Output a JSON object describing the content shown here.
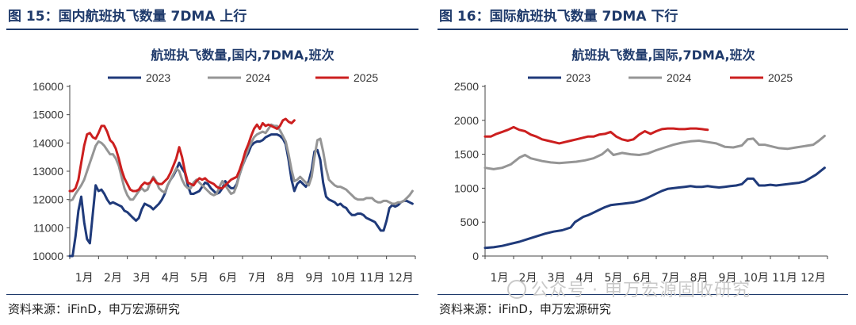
{
  "left": {
    "fig_title": "图 15：国内航班执飞数量 7DMA 上行",
    "source": "资料来源：iFinD，申万宏源研究"
  },
  "right": {
    "fig_title": "图 16：国际航班执飞数量 7DMA 下行",
    "source": "资料来源：iFinD，申万宏源研究"
  },
  "watermark": "公众号 · 申万宏源固收研究",
  "chart_data": [
    {
      "type": "line",
      "title": "航班执飞数量,国内,7DMA,班次",
      "categories": [
        "1月",
        "2月",
        "3月",
        "4月",
        "5月",
        "6月",
        "7月",
        "8月",
        "9月",
        "10月",
        "11月",
        "12月"
      ],
      "ylim": [
        10000,
        16000
      ],
      "yticks": [
        10000,
        11000,
        12000,
        13000,
        14000,
        15000,
        16000
      ],
      "grid": false,
      "legend_position": "top",
      "colors": {
        "2023": "#1f3a7a",
        "2024": "#959595",
        "2025": "#cc1f1f"
      },
      "series": [
        {
          "name": "2023",
          "x": [
            1.0,
            1.1,
            1.2,
            1.3,
            1.4,
            1.5,
            1.6,
            1.7,
            1.8,
            1.9,
            2.0,
            2.1,
            2.2,
            2.3,
            2.4,
            2.5,
            2.6,
            2.7,
            2.8,
            2.9,
            3.0,
            3.1,
            3.2,
            3.3,
            3.4,
            3.5,
            3.6,
            3.7,
            3.8,
            3.9,
            4.0,
            4.1,
            4.2,
            4.3,
            4.4,
            4.5,
            4.6,
            4.7,
            4.8,
            4.9,
            5.0,
            5.1,
            5.2,
            5.3,
            5.4,
            5.5,
            5.6,
            5.7,
            5.8,
            5.9,
            6.0,
            6.1,
            6.2,
            6.3,
            6.4,
            6.5,
            6.6,
            6.7,
            6.8,
            6.9,
            7.0,
            7.1,
            7.2,
            7.3,
            7.4,
            7.5,
            7.6,
            7.7,
            7.8,
            7.9,
            8.0,
            8.1,
            8.2,
            8.3,
            8.4,
            8.5,
            8.6,
            8.7,
            8.8,
            8.9,
            9.0,
            9.1,
            9.2,
            9.3,
            9.4,
            9.5,
            9.6,
            9.7,
            9.8,
            9.9,
            10.0,
            10.1,
            10.2,
            10.3,
            10.4,
            10.5,
            10.6,
            10.7,
            10.8,
            10.9,
            11.0,
            11.1,
            11.2,
            11.3,
            11.4,
            11.5,
            11.6,
            11.7,
            11.8,
            11.9,
            12.0,
            12.1,
            12.2,
            12.3,
            12.4,
            12.5,
            12.6,
            12.7,
            12.8,
            12.9
          ],
          "values": [
            9700,
            9950,
            10700,
            11600,
            12100,
            11200,
            10600,
            10450,
            11500,
            12500,
            12300,
            12350,
            12200,
            12000,
            11850,
            11900,
            11850,
            11800,
            11750,
            11600,
            11550,
            11450,
            11350,
            11250,
            11350,
            11650,
            11850,
            11800,
            11750,
            11650,
            11750,
            11850,
            12000,
            12200,
            12500,
            12700,
            12850,
            13050,
            13300,
            13100,
            12950,
            12500,
            12200,
            12200,
            12250,
            12300,
            12450,
            12600,
            12550,
            12400,
            12300,
            12200,
            12250,
            12400,
            12650,
            12500,
            12400,
            12400,
            12550,
            12900,
            13200,
            13450,
            13650,
            13900,
            14000,
            14050,
            14050,
            14100,
            14200,
            14250,
            14300,
            14300,
            14300,
            14250,
            14150,
            13950,
            13400,
            12700,
            12300,
            12550,
            12650,
            12550,
            12450,
            12650,
            13050,
            13700,
            13750,
            13400,
            12600,
            12100,
            12000,
            11950,
            11900,
            11800,
            11850,
            11750,
            11700,
            11550,
            11450,
            11450,
            11500,
            11500,
            11450,
            11350,
            11300,
            11250,
            11200,
            11050,
            10900,
            10900,
            11250,
            11700,
            11800,
            11750,
            11800,
            11900,
            11950,
            11950,
            11900,
            11850
          ]
        },
        {
          "name": "2024",
          "x": [
            1.0,
            1.1,
            1.2,
            1.3,
            1.4,
            1.5,
            1.6,
            1.7,
            1.8,
            1.9,
            2.0,
            2.1,
            2.2,
            2.3,
            2.4,
            2.5,
            2.6,
            2.7,
            2.8,
            2.9,
            3.0,
            3.1,
            3.2,
            3.3,
            3.4,
            3.5,
            3.6,
            3.7,
            3.8,
            3.9,
            4.0,
            4.1,
            4.2,
            4.3,
            4.4,
            4.5,
            4.6,
            4.7,
            4.8,
            4.9,
            5.0,
            5.1,
            5.2,
            5.3,
            5.4,
            5.5,
            5.6,
            5.7,
            5.8,
            5.9,
            6.0,
            6.1,
            6.2,
            6.3,
            6.4,
            6.5,
            6.6,
            6.7,
            6.8,
            6.9,
            7.0,
            7.1,
            7.2,
            7.3,
            7.4,
            7.5,
            7.6,
            7.7,
            7.8,
            7.9,
            8.0,
            8.1,
            8.2,
            8.3,
            8.4,
            8.5,
            8.6,
            8.7,
            8.8,
            8.9,
            9.0,
            9.1,
            9.2,
            9.3,
            9.4,
            9.5,
            9.6,
            9.7,
            9.8,
            9.9,
            10.0,
            10.1,
            10.2,
            10.3,
            10.4,
            10.5,
            10.6,
            10.7,
            10.8,
            10.9,
            11.0,
            11.1,
            11.2,
            11.3,
            11.4,
            11.5,
            11.6,
            11.7,
            11.8,
            11.9,
            12.0,
            12.1,
            12.2,
            12.3,
            12.4,
            12.5,
            12.6,
            12.7,
            12.8,
            12.9
          ],
          "values": [
            11950,
            12000,
            12200,
            12350,
            12500,
            12700,
            13000,
            13300,
            13600,
            13900,
            14050,
            14000,
            13900,
            13750,
            13600,
            13600,
            13450,
            13200,
            12800,
            12400,
            12150,
            12000,
            12000,
            12150,
            12300,
            12400,
            12300,
            12350,
            12600,
            12800,
            12650,
            12400,
            12300,
            12250,
            12500,
            12700,
            12900,
            13100,
            13000,
            12700,
            12500,
            12400,
            12400,
            12600,
            12700,
            12600,
            12500,
            12400,
            12300,
            12200,
            12150,
            12200,
            12450,
            12650,
            12500,
            12350,
            12200,
            12250,
            12500,
            12900,
            13200,
            13500,
            13800,
            14000,
            14200,
            14300,
            14350,
            14400,
            14350,
            14500,
            14650,
            14600,
            14600,
            14450,
            14250,
            14050,
            13600,
            13050,
            12650,
            12700,
            12800,
            12700,
            12600,
            12500,
            12800,
            13500,
            14100,
            14150,
            13700,
            13100,
            12700,
            12600,
            12500,
            12450,
            12450,
            12400,
            12350,
            12250,
            12150,
            12050,
            12000,
            12000,
            12000,
            12050,
            12050,
            12050,
            11950,
            11900,
            11900,
            11950,
            11950,
            11900,
            11850,
            11850,
            11900,
            11900,
            11950,
            12050,
            12150,
            12300
          ]
        },
        {
          "name": "2025",
          "x": [
            1.0,
            1.1,
            1.2,
            1.3,
            1.4,
            1.5,
            1.6,
            1.7,
            1.8,
            1.9,
            2.0,
            2.1,
            2.2,
            2.3,
            2.4,
            2.5,
            2.6,
            2.7,
            2.8,
            2.9,
            3.0,
            3.1,
            3.2,
            3.3,
            3.4,
            3.5,
            3.6,
            3.7,
            3.8,
            3.9,
            4.0,
            4.1,
            4.2,
            4.3,
            4.4,
            4.5,
            4.6,
            4.7,
            4.8,
            4.9,
            5.0,
            5.1,
            5.2,
            5.3,
            5.4,
            5.5,
            5.6,
            5.7,
            5.8,
            5.9,
            6.0,
            6.1,
            6.2,
            6.3,
            6.4,
            6.5,
            6.6,
            6.7,
            6.8,
            6.9,
            7.0,
            7.1,
            7.2,
            7.3,
            7.4,
            7.5,
            7.6,
            7.7,
            7.8,
            7.9,
            8.0,
            8.1,
            8.2,
            8.3,
            8.4,
            8.5,
            8.6,
            8.7,
            8.8
          ],
          "values": [
            12300,
            12300,
            12400,
            12700,
            13300,
            13900,
            14300,
            14350,
            14200,
            14150,
            14350,
            14600,
            14600,
            14400,
            14100,
            14000,
            13800,
            13450,
            13050,
            12750,
            12550,
            12350,
            12300,
            12300,
            12350,
            12500,
            12600,
            12550,
            12600,
            12750,
            12600,
            12550,
            12550,
            12650,
            12750,
            12950,
            13200,
            13450,
            13850,
            13500,
            13000,
            12600,
            12550,
            12500,
            12650,
            12750,
            12700,
            12750,
            12650,
            12600,
            12550,
            12450,
            12400,
            12400,
            12500,
            12600,
            12700,
            12750,
            12800,
            13050,
            13350,
            13700,
            13950,
            14250,
            14500,
            14650,
            14500,
            14700,
            14600,
            14650,
            14600,
            14550,
            14500,
            14600,
            14800,
            14850,
            14750,
            14700,
            14800
          ]
        }
      ]
    },
    {
      "type": "line",
      "title": "航班执飞数量,国际,7DMA,班次",
      "categories": [
        "1月",
        "2月",
        "3月",
        "4月",
        "5月",
        "6月",
        "7月",
        "8月",
        "9月",
        "10月",
        "11月",
        "12月"
      ],
      "ylim": [
        0,
        2500
      ],
      "yticks": [
        0,
        500,
        1000,
        1500,
        2000,
        2500
      ],
      "grid": false,
      "legend_position": "top",
      "colors": {
        "2023": "#1f3a7a",
        "2024": "#959595",
        "2025": "#cc1f1f"
      },
      "series": [
        {
          "name": "2023",
          "x": [
            1.0,
            1.3,
            1.6,
            1.9,
            2.2,
            2.5,
            2.8,
            3.1,
            3.4,
            3.7,
            4.0,
            4.15,
            4.3,
            4.45,
            4.6,
            4.75,
            4.9,
            5.05,
            5.2,
            5.4,
            5.6,
            5.8,
            6.0,
            6.2,
            6.4,
            6.6,
            6.8,
            7.0,
            7.2,
            7.4,
            7.6,
            7.8,
            8.0,
            8.2,
            8.4,
            8.6,
            8.8,
            9.0,
            9.2,
            9.4,
            9.6,
            9.8,
            10.0,
            10.2,
            10.4,
            10.6,
            10.8,
            11.0,
            11.2,
            11.4,
            11.6,
            11.8,
            12.0,
            12.2,
            12.4,
            12.6,
            12.9
          ],
          "values": [
            120,
            130,
            150,
            180,
            210,
            250,
            290,
            330,
            360,
            380,
            420,
            500,
            540,
            580,
            600,
            630,
            660,
            690,
            720,
            750,
            760,
            770,
            780,
            790,
            810,
            840,
            880,
            920,
            960,
            990,
            1000,
            1010,
            1020,
            1030,
            1020,
            1020,
            1030,
            1020,
            1010,
            1020,
            1030,
            1040,
            1060,
            1140,
            1140,
            1040,
            1040,
            1050,
            1040,
            1050,
            1060,
            1070,
            1080,
            1100,
            1150,
            1200,
            1300
          ]
        },
        {
          "name": "2024",
          "x": [
            1.0,
            1.3,
            1.6,
            1.9,
            2.2,
            2.4,
            2.6,
            2.8,
            3.0,
            3.3,
            3.6,
            3.9,
            4.2,
            4.5,
            4.8,
            5.1,
            5.3,
            5.5,
            5.8,
            6.1,
            6.4,
            6.7,
            7.0,
            7.3,
            7.6,
            7.9,
            8.2,
            8.5,
            8.8,
            9.1,
            9.4,
            9.7,
            10.0,
            10.2,
            10.4,
            10.6,
            10.8,
            11.0,
            11.3,
            11.6,
            11.9,
            12.2,
            12.5,
            12.7,
            12.9
          ],
          "values": [
            1300,
            1280,
            1300,
            1350,
            1450,
            1490,
            1440,
            1420,
            1400,
            1380,
            1370,
            1380,
            1390,
            1410,
            1440,
            1500,
            1570,
            1490,
            1520,
            1500,
            1490,
            1510,
            1560,
            1600,
            1640,
            1670,
            1690,
            1700,
            1680,
            1660,
            1610,
            1600,
            1630,
            1720,
            1730,
            1640,
            1640,
            1620,
            1590,
            1580,
            1600,
            1620,
            1640,
            1700,
            1770
          ]
        },
        {
          "name": "2025",
          "x": [
            1.0,
            1.2,
            1.4,
            1.6,
            1.8,
            2.0,
            2.2,
            2.4,
            2.6,
            2.8,
            3.0,
            3.2,
            3.4,
            3.6,
            3.8,
            4.0,
            4.2,
            4.4,
            4.6,
            4.8,
            5.0,
            5.2,
            5.4,
            5.6,
            5.8,
            6.0,
            6.2,
            6.4,
            6.6,
            6.8,
            7.0,
            7.2,
            7.4,
            7.6,
            7.8,
            8.0,
            8.2,
            8.4,
            8.6,
            8.8
          ],
          "values": [
            1760,
            1760,
            1800,
            1830,
            1860,
            1900,
            1860,
            1840,
            1790,
            1760,
            1720,
            1700,
            1680,
            1660,
            1680,
            1700,
            1720,
            1740,
            1760,
            1760,
            1790,
            1800,
            1830,
            1760,
            1720,
            1700,
            1720,
            1790,
            1840,
            1800,
            1840,
            1870,
            1880,
            1880,
            1870,
            1870,
            1880,
            1880,
            1870,
            1860
          ]
        }
      ]
    }
  ]
}
